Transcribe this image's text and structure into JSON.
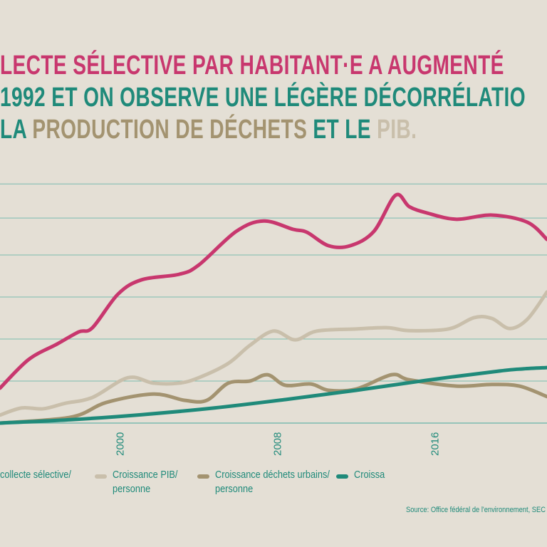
{
  "title": {
    "line1": "LECTE SÉLECTIVE PAR HABITANT·E A AUGMENTÉ",
    "line2": " 1992 ET ON OBSERVE UNE LÉGÈRE DÉCORRÉLATIO",
    "line3_a": "LA ",
    "line3_b": "PRODUCTION DE DÉCHETS",
    "line3_c": " ET LE ",
    "line3_d": "PIB."
  },
  "colors": {
    "background": "#e4dfd5",
    "collecte": "#c8376e",
    "pib": "#c9bfab",
    "dechets": "#a39370",
    "population": "#1f8a7a",
    "grid": "#7bbcb0",
    "text": "#1f8a7a"
  },
  "chart_data": {
    "type": "line",
    "grid": true,
    "xlim": [
      1993.9,
      2021.7
    ],
    "ylim": [
      0,
      5.9
    ],
    "gridlines": [
      0,
      1,
      2,
      3,
      4,
      4.88,
      5.69
    ],
    "xticks": [
      "2000",
      "2008",
      "2016"
    ],
    "xtick_values": [
      2000,
      2008,
      2016
    ],
    "legend_placement": "bottom",
    "series": [
      {
        "name": "collecte sélective/",
        "color_key": "collecte",
        "x": [
          1993.9,
          1995.35,
          1996.8,
          1997.9,
          1998.6,
          1999.9,
          2001.1,
          2003.0,
          2004.0,
          2005.9,
          2007.3,
          2008.8,
          2009.5,
          2010.6,
          2011.7,
          2012.9,
          2014.0,
          2014.7,
          2015.6,
          2017.1,
          2018.9,
          2020.7,
          2021.7
        ],
        "y": [
          0.83,
          1.51,
          1.88,
          2.17,
          2.27,
          3.07,
          3.41,
          3.54,
          3.76,
          4.56,
          4.81,
          4.61,
          4.54,
          4.22,
          4.22,
          4.56,
          5.42,
          5.15,
          5.0,
          4.85,
          4.95,
          4.78,
          4.37
        ]
      },
      {
        "name": "Croissance PIB/ personne",
        "color_key": "pib",
        "x": [
          1993.9,
          1995.0,
          1996.1,
          1997.2,
          1998.6,
          2000.4,
          2001.7,
          2003.0,
          2004.0,
          2005.5,
          2006.6,
          2007.8,
          2008.9,
          2010.0,
          2012.0,
          2013.6,
          2014.7,
          2016.7,
          2018.0,
          2018.9,
          2019.8,
          2020.7,
          2021.7
        ],
        "y": [
          0.19,
          0.36,
          0.34,
          0.47,
          0.61,
          1.08,
          0.95,
          0.95,
          1.08,
          1.42,
          1.85,
          2.19,
          1.98,
          2.19,
          2.24,
          2.27,
          2.2,
          2.24,
          2.51,
          2.49,
          2.25,
          2.47,
          3.12
        ]
      },
      {
        "name": "Croissance déchets urbains/ personne",
        "color_key": "dechets",
        "x": [
          1993.9,
          1997.5,
          1999.3,
          2001.7,
          2003.3,
          2004.4,
          2005.5,
          2006.6,
          2007.5,
          2008.4,
          2009.7,
          2010.6,
          2012.0,
          2013.8,
          2014.7,
          2017.1,
          2018.9,
          2020.3,
          2021.7
        ],
        "y": [
          0,
          0.14,
          0.49,
          0.69,
          0.54,
          0.54,
          0.95,
          1.0,
          1.15,
          0.9,
          0.93,
          0.78,
          0.81,
          1.15,
          1.03,
          0.88,
          0.92,
          0.88,
          0.63
        ]
      },
      {
        "name": "Croissa",
        "color_key": "population",
        "x": [
          1993.9,
          1997.5,
          2001.1,
          2004.8,
          2008.4,
          2012.0,
          2015.6,
          2019.3,
          2020.5,
          2021.7
        ],
        "y": [
          0,
          0.08,
          0.2,
          0.36,
          0.56,
          0.78,
          1.02,
          1.24,
          1.29,
          1.32
        ]
      }
    ]
  },
  "legend": [
    {
      "label1": "collecte sélective/",
      "label2": "",
      "color_key": "collecte"
    },
    {
      "label1": "Croissance PIB/",
      "label2": "personne",
      "color_key": "pib"
    },
    {
      "label1": "Croissance déchets urbains/",
      "label2": "personne",
      "color_key": "dechets"
    },
    {
      "label1": "Croissa",
      "label2": "",
      "color_key": "population"
    }
  ],
  "source": "Source: Office fédéral de l'environnement, SEC"
}
